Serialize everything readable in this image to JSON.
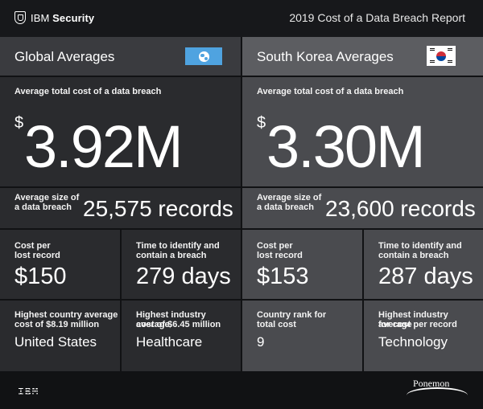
{
  "header": {
    "brand_prefix": "IBM",
    "brand_suffix": "Security",
    "report_title": "2019 Cost of a Data Breach Report"
  },
  "regions": [
    {
      "title": "Global Averages",
      "flag_icon": "globe-icon",
      "avg_total_cost_label": "Average total cost of a data breach",
      "avg_total_cost_currency": "$",
      "avg_total_cost_value": "3.92M",
      "avg_size_label_1": "Average size of",
      "avg_size_label_2": "a data breach",
      "avg_size_value": "25,575 records",
      "cells": [
        {
          "label_1": "Cost per",
          "label_2": "lost record",
          "value": "$150"
        },
        {
          "label_1": "Time to identify and",
          "label_2": "contain a breach",
          "value": "279 days"
        },
        {
          "label_1": "Highest country average",
          "label_2": "cost of $8.19 million",
          "value": "United States"
        },
        {
          "label_1": "Highest industry average",
          "label_2": "cost of $6.45 million",
          "value": "Healthcare"
        }
      ]
    },
    {
      "title": "South Korea Averages",
      "flag_icon": "south-korea-flag-icon",
      "avg_total_cost_label": "Average total cost of a data breach",
      "avg_total_cost_currency": "$",
      "avg_total_cost_value": "3.30M",
      "avg_size_label_1": "Average size of",
      "avg_size_label_2": "a data breach",
      "avg_size_value": "23,600 records",
      "cells": [
        {
          "label_1": "Cost per",
          "label_2": "lost record",
          "value": "$153"
        },
        {
          "label_1": "Time to identify and",
          "label_2": "contain a breach",
          "value": "287 days"
        },
        {
          "label_1": "Country rank for",
          "label_2": "total cost",
          "value": "9"
        },
        {
          "label_1": "Highest industry average",
          "label_2": "for cost per record",
          "value": "Technology"
        }
      ]
    }
  ],
  "footer": {
    "ibm_logo": "IBM",
    "ponemon_logo": "Ponemon"
  }
}
